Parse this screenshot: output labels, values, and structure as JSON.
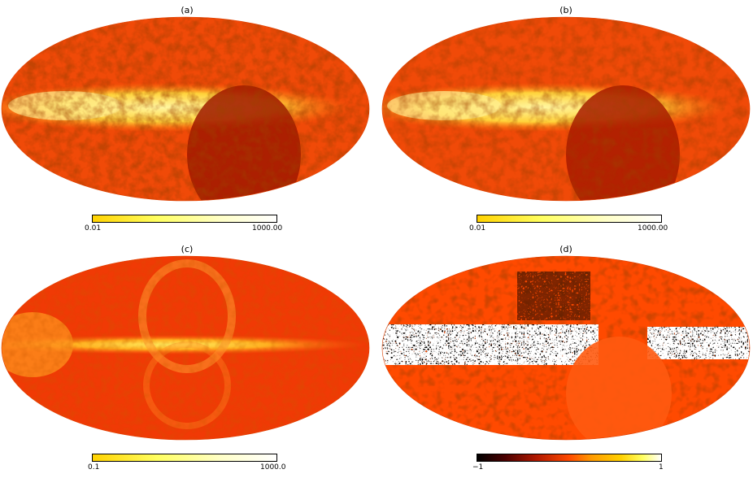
{
  "panels": [
    {
      "id": "a",
      "title": "(a)",
      "colorbar": {
        "min": "0.01",
        "max": "1000.00",
        "scheme": "hot"
      },
      "colors": {
        "base": "#f04a08",
        "band": "#ffe870",
        "dark": "#a01800"
      }
    },
    {
      "id": "b",
      "title": "(b)",
      "colorbar": {
        "min": "0.01",
        "max": "1000.00",
        "scheme": "hot"
      },
      "colors": {
        "base": "#f04a08",
        "band": "#ffe870",
        "dark": "#a81a00"
      }
    },
    {
      "id": "c",
      "title": "(c)",
      "colorbar": {
        "min": "0.1",
        "max": "1000.0",
        "scheme": "hot"
      },
      "colors": {
        "base": "#f03a05",
        "band": "#ffd040",
        "dark": "#c02000"
      }
    },
    {
      "id": "d",
      "title": "(d)",
      "colorbar": {
        "min": "−1",
        "max": "1",
        "scheme": "diverging"
      },
      "colors": {
        "base": "#ff4a00",
        "band": "#000000",
        "dark": "#ff5a10"
      }
    }
  ]
}
